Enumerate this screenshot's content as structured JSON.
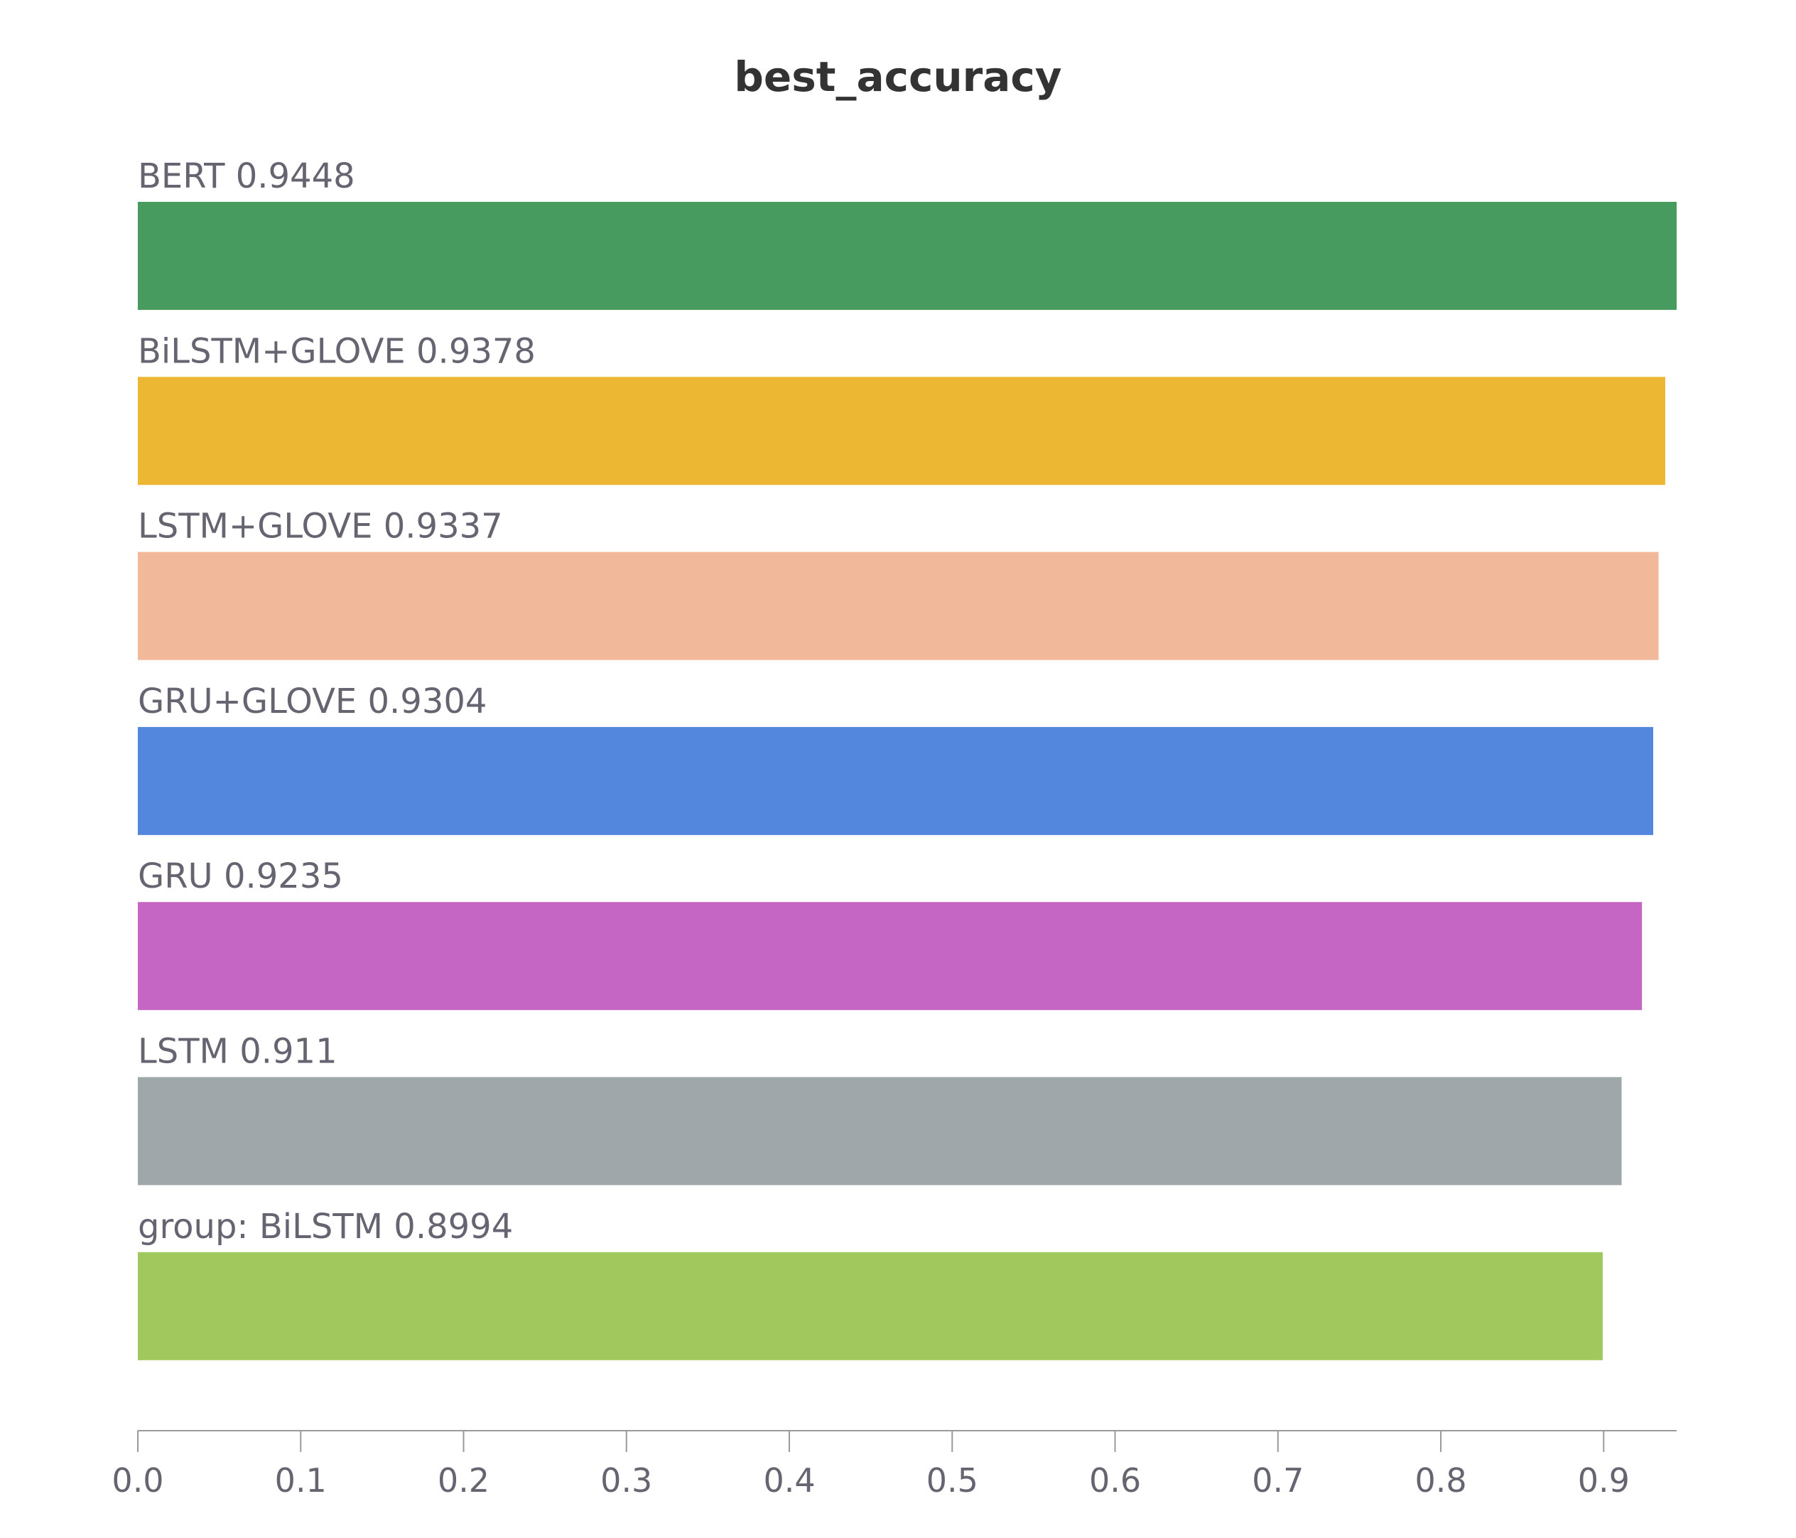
{
  "chart_data": {
    "type": "bar",
    "orientation": "horizontal",
    "title": "best_accuracy",
    "xlabel": "",
    "ylabel": "",
    "xlim": [
      0,
      0.9448
    ],
    "grid": false,
    "legend": "none",
    "categories": [
      "BERT",
      "BiLSTM+GLOVE",
      "LSTM+GLOVE",
      "GRU+GLOVE",
      "GRU",
      "LSTM",
      "group: BiLSTM"
    ],
    "values": [
      0.9448,
      0.9378,
      0.9337,
      0.9304,
      0.9235,
      0.911,
      0.8994
    ],
    "bar_labels": [
      "BERT 0.9448",
      "BiLSTM+GLOVE 0.9378",
      "LSTM+GLOVE 0.9337",
      "GRU+GLOVE 0.9304",
      "GRU 0.9235",
      "LSTM 0.911",
      "group: BiLSTM 0.8994"
    ],
    "colors": [
      "#489b5f",
      "#ecb732",
      "#f1b899",
      "#5387dd",
      "#c565c4",
      "#a0a7aa",
      "#a1c85d"
    ],
    "xticks": [
      0.0,
      0.1,
      0.2,
      0.3,
      0.4,
      0.5,
      0.6,
      0.7,
      0.8,
      0.9
    ],
    "xtick_labels": [
      "0.0",
      "0.1",
      "0.2",
      "0.3",
      "0.4",
      "0.5",
      "0.6",
      "0.7",
      "0.8",
      "0.9"
    ]
  }
}
